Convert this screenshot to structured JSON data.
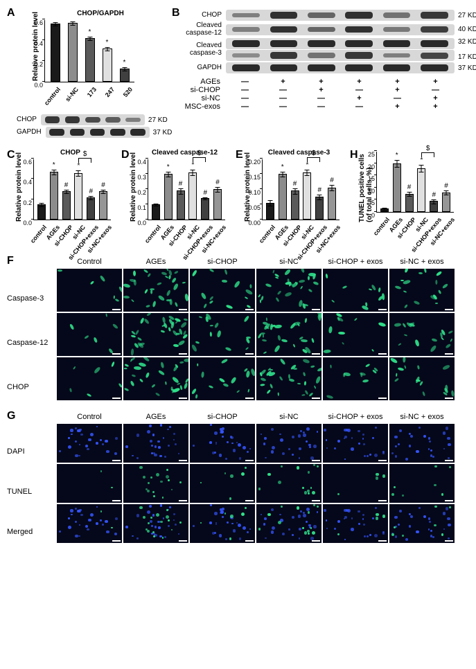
{
  "panelLabels": {
    "A": "A",
    "B": "B",
    "C": "C",
    "D": "D",
    "E": "E",
    "F": "F",
    "G": "G",
    "H": "H"
  },
  "colors": {
    "bar_palette": [
      "#1a1a1a",
      "#8c8c8c",
      "#5a5a5a",
      "#e0e0e0",
      "#404040",
      "#969696"
    ],
    "blot_bg": "#d8d8d8",
    "band_dark": "#2a2a2a",
    "micro_bg": "#05081a",
    "blue": "#3555ff",
    "green": "#2fe08a",
    "cyan": "#35e0d8"
  },
  "A": {
    "chart": {
      "title": "CHOP/GAPDH",
      "ylab": "Relative protein level",
      "ymax": 0.6,
      "ytick": 0.2,
      "yticks": [
        "0.0",
        "0.2",
        "0.4",
        "0.6"
      ],
      "cats": [
        "control",
        "si-NC",
        "173",
        "247",
        "520"
      ],
      "vals": [
        0.56,
        0.57,
        0.42,
        0.32,
        0.13
      ],
      "errs": [
        0.02,
        0.02,
        0.02,
        0.02,
        0.02
      ],
      "sig": [
        "",
        "",
        "*",
        "*",
        "*"
      ],
      "colors": [
        "#1a1a1a",
        "#8c8c8c",
        "#5a5a5a",
        "#e0e0e0",
        "#404040"
      ]
    },
    "blot": {
      "labelW": 46,
      "stripW": 150,
      "rows": [
        {
          "label": "CHOP",
          "mw": "27 KD",
          "intens": [
            0.9,
            0.9,
            0.75,
            0.6,
            0.35
          ]
        },
        {
          "label": "GAPDH",
          "mw": "37 KD",
          "intens": [
            1,
            1,
            1,
            1,
            1
          ]
        }
      ]
    }
  },
  "B": {
    "labelW": 78,
    "stripW": 330,
    "rows": [
      {
        "label": "CHOP",
        "mw": "27 KD",
        "intens": [
          0.35,
          0.95,
          0.55,
          0.95,
          0.45,
          0.9
        ]
      },
      {
        "label": "Cleaved\ncaspase-12",
        "mw": "40 KD",
        "intens": [
          0.35,
          0.95,
          0.55,
          0.95,
          0.4,
          0.85
        ]
      },
      {
        "label": "Cleaved\ncaspase-3",
        "mw": "32 KD",
        "intens": [
          1,
          1,
          1,
          1,
          1,
          1
        ],
        "double": true,
        "mw2": "17 KD",
        "intens2": [
          0.25,
          0.9,
          0.45,
          0.9,
          0.35,
          0.8
        ]
      },
      {
        "label": "GAPDH",
        "mw": "37 KD",
        "intens": [
          1,
          1,
          1,
          1,
          1,
          1
        ]
      }
    ],
    "conds": {
      "labels": [
        "AGEs",
        "si-CHOP",
        "si-NC",
        "MSC-exos"
      ],
      "grid": [
        [
          "—",
          "+",
          "+",
          "+",
          "+",
          "+"
        ],
        [
          "—",
          "—",
          "+",
          "—",
          "+",
          "—"
        ],
        [
          "—",
          "—",
          "—",
          "+",
          "—",
          "+"
        ],
        [
          "—",
          "—",
          "—",
          "—",
          "+",
          "+"
        ]
      ]
    }
  },
  "smallCharts": {
    "ymax": [
      0.6,
      0.4,
      0.2,
      25
    ],
    "yticks": [
      [
        "0.0",
        "0.2",
        "0.4",
        "0.6"
      ],
      [
        "0.0",
        "0.1",
        "0.2",
        "0.3",
        "0.4"
      ],
      [
        "0.00",
        "0.05",
        "0.10",
        "0.15",
        "0.20"
      ],
      [
        "0",
        "5",
        "10",
        "15",
        "20",
        "25"
      ]
    ],
    "cats": [
      "control",
      "AGEs",
      "si-CHOP",
      "si-NC",
      "si-CHOP+exos",
      "si-NC+exos"
    ],
    "colors": [
      "#1a1a1a",
      "#8c8c8c",
      "#5a5a5a",
      "#e0e0e0",
      "#404040",
      "#969696"
    ],
    "C": {
      "title": "CHOP",
      "ylab": "Relative protein level",
      "vals": [
        0.15,
        0.47,
        0.28,
        0.46,
        0.22,
        0.28
      ],
      "errs": [
        0.02,
        0.03,
        0.02,
        0.03,
        0.02,
        0.02
      ],
      "sig": [
        "",
        "*",
        "#",
        "*",
        "#",
        "#"
      ],
      "bracket": {
        "from": 3,
        "to": 4,
        "label": "$"
      }
    },
    "D": {
      "title": "Cleaved caspase-12",
      "ylab": "Relative protein level",
      "vals": [
        0.1,
        0.3,
        0.19,
        0.31,
        0.14,
        0.2
      ],
      "errs": [
        0.01,
        0.02,
        0.02,
        0.02,
        0.01,
        0.02
      ],
      "sig": [
        "",
        "*",
        "#",
        "*",
        "#",
        "#"
      ],
      "bracket": {
        "from": 3,
        "to": 4,
        "label": "$"
      }
    },
    "E": {
      "title": "Cleaved caspase-3",
      "ylab": "Relative protein level",
      "vals": [
        0.055,
        0.15,
        0.095,
        0.155,
        0.075,
        0.105
      ],
      "errs": [
        0.01,
        0.01,
        0.01,
        0.01,
        0.01,
        0.01
      ],
      "sig": [
        "",
        "*",
        "#",
        "*",
        "#",
        "#"
      ],
      "bracket": {
        "from": 3,
        "to": 4,
        "label": "$"
      }
    },
    "H": {
      "title": "",
      "ylab": "TUNEL positive cells\n(of total cells, %)",
      "vals": [
        1.5,
        20,
        7.5,
        18,
        4.5,
        8
      ],
      "errs": [
        0.5,
        1.5,
        1,
        1.5,
        1,
        1
      ],
      "sig": [
        "",
        "*",
        "#",
        "*",
        "#",
        "#"
      ],
      "bracket": {
        "from": 3,
        "to": 4,
        "label": "$"
      }
    }
  },
  "F": {
    "cols": [
      "Control",
      "AGEs",
      "si-CHOP",
      "si-NC",
      "si-CHOP + exos",
      "si-NC + exos"
    ],
    "rows": [
      "Caspase-3",
      "Caspase-12",
      "CHOP"
    ],
    "density": [
      [
        6,
        30,
        14,
        28,
        10,
        16
      ],
      [
        6,
        30,
        14,
        28,
        10,
        16
      ],
      [
        6,
        30,
        14,
        28,
        10,
        16
      ]
    ],
    "cellW": 94,
    "cellH": 62,
    "dotColor": "#2fe08a"
  },
  "G": {
    "cols": [
      "Control",
      "AGEs",
      "si-CHOP",
      "si-NC",
      "si-CHOP + exos",
      "si-NC + exos"
    ],
    "rows": [
      "DAPI",
      "TUNEL",
      "Merged"
    ],
    "dapi_density": [
      26,
      26,
      26,
      26,
      26,
      26
    ],
    "tunel_density": [
      2,
      16,
      6,
      14,
      4,
      7
    ],
    "cellW": 94,
    "cellH": 56
  }
}
